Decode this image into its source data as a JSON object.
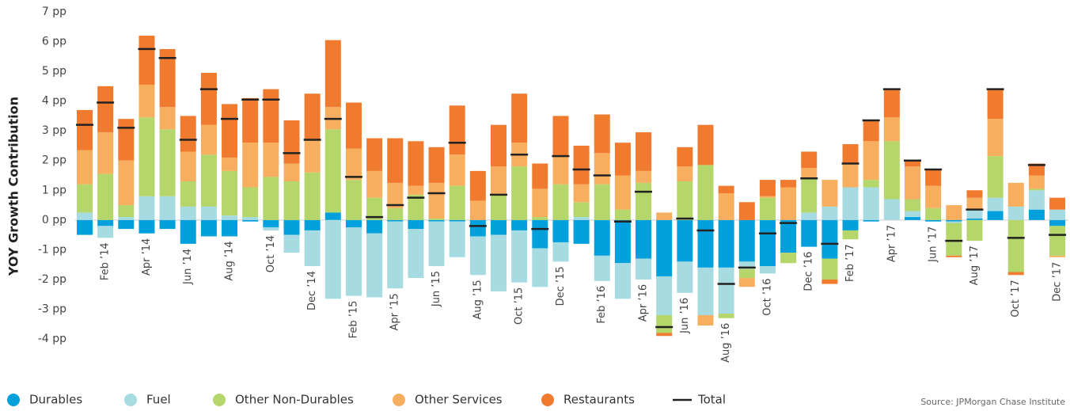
{
  "chart_data": {
    "type": "stacked-bar",
    "y_label": "YOY Growth Contribution",
    "source": "Source: JPMorgan Chase Institute",
    "categories": [
      null,
      "Feb ’14",
      null,
      "Apr ’14",
      null,
      "Jun ’14",
      null,
      "Aug ’14",
      null,
      "Oct ’14",
      null,
      "Dec ’14",
      null,
      "Feb ’15",
      null,
      "Apr ’15",
      null,
      "Jun ’15",
      null,
      "Aug ’15",
      null,
      "Oct ’15",
      null,
      "Dec ’15",
      null,
      "Feb ’16",
      null,
      "Apr ’16",
      null,
      "Jun ’16",
      null,
      "Aug ’16",
      null,
      "Oct ’16",
      null,
      "Dec ’16",
      null,
      "Feb ’17",
      null,
      "Apr ’17",
      null,
      "Jun ’17",
      null,
      "Aug ’17",
      null,
      "Oct ’17",
      null,
      "Dec ’17"
    ],
    "series": [
      {
        "name": "Durables",
        "color": "#00a0dc",
        "values": [
          -0.5,
          -0.2,
          -0.3,
          -0.45,
          -0.3,
          -0.8,
          -0.55,
          -0.55,
          -0.05,
          -0.25,
          -0.5,
          -0.35,
          0.25,
          -0.25,
          -0.45,
          -0.05,
          -0.3,
          -0.05,
          -0.05,
          -0.55,
          -0.5,
          -0.35,
          -0.95,
          -0.75,
          -0.8,
          -1.2,
          -1.45,
          -1.3,
          -1.9,
          -1.4,
          -1.6,
          -1.6,
          -1.4,
          -1.55,
          -1.1,
          -0.9,
          -1.3,
          -0.35,
          -0.05,
          0,
          0.1,
          -0.05,
          -0.05,
          0.05,
          0.3,
          0,
          0.35,
          -0.2
        ]
      },
      {
        "name": "Fuel",
        "color": "#a5dbe1",
        "values": [
          0.25,
          -0.4,
          0.1,
          0.8,
          0.8,
          0.45,
          0.45,
          0.15,
          0.1,
          -0.1,
          -0.6,
          -1.2,
          -2.65,
          -2.3,
          -2.15,
          -2.25,
          -1.65,
          -1.5,
          -1.2,
          -1.3,
          -1.9,
          -1.75,
          -1.3,
          -0.65,
          0.1,
          -0.85,
          -1.2,
          -0.7,
          -1.3,
          -1.05,
          -1.6,
          -1.55,
          -0.25,
          -0.25,
          0,
          0.25,
          0.45,
          1.1,
          1.1,
          0.7,
          0.2,
          0,
          -0.05,
          0.3,
          0.45,
          0.45,
          0.65,
          0.35
        ]
      },
      {
        "name": "Other Non-Durables",
        "color": "#b4d66a",
        "values": [
          0.95,
          1.55,
          0.4,
          2.65,
          2.25,
          0.85,
          1.75,
          1.5,
          1.0,
          1.45,
          1.3,
          1.6,
          2.8,
          1.35,
          0.75,
          0.4,
          0.85,
          0.05,
          1.15,
          0,
          0.85,
          1.8,
          0.1,
          1.2,
          0.5,
          1.2,
          0.35,
          1.25,
          -0.6,
          1.3,
          1.85,
          -0.15,
          -0.3,
          0.75,
          -0.35,
          1.15,
          -0.7,
          -0.3,
          0.25,
          1.95,
          0.4,
          0.4,
          -1.1,
          -0.7,
          1.4,
          -1.75,
          0.05,
          -1.0
        ]
      },
      {
        "name": "Other Services",
        "color": "#f8ae5f",
        "values": [
          1.15,
          1.4,
          1.5,
          1.1,
          0.75,
          1.0,
          1.0,
          0.45,
          1.5,
          1.15,
          0.6,
          1.1,
          0.75,
          1.05,
          0.9,
          0.85,
          0.3,
          1.2,
          1.05,
          0.65,
          0.95,
          0.8,
          0.95,
          0.95,
          0.6,
          1.05,
          1.15,
          0.4,
          0.25,
          0.5,
          -0.35,
          0.9,
          -0.3,
          0.05,
          1.1,
          0.35,
          0.9,
          0.8,
          1.3,
          0.8,
          1.1,
          0.75,
          0.5,
          0.4,
          1.25,
          0.8,
          0.45,
          -0.05
        ]
      },
      {
        "name": "Restaurants",
        "color": "#f07a2d",
        "values": [
          1.35,
          1.55,
          1.4,
          1.65,
          1.95,
          1.2,
          1.75,
          1.8,
          1.5,
          1.8,
          1.45,
          1.55,
          2.25,
          1.55,
          1.1,
          1.5,
          1.5,
          1.2,
          1.65,
          1.0,
          1.4,
          1.65,
          0.85,
          1.35,
          1.3,
          1.3,
          1.1,
          1.3,
          -0.1,
          0.65,
          1.35,
          0.25,
          0.6,
          0.55,
          0.25,
          0.55,
          -0.15,
          0.65,
          0.7,
          0.95,
          0.2,
          0.55,
          -0.05,
          0.25,
          1.0,
          -0.1,
          0.4,
          0.4
        ]
      }
    ],
    "total": {
      "name": "Total",
      "color": "#222222",
      "values": [
        3.2,
        3.95,
        3.1,
        5.75,
        5.45,
        2.7,
        4.4,
        3.4,
        4.05,
        4.05,
        2.25,
        2.7,
        3.4,
        1.45,
        0.1,
        0.5,
        0.75,
        0.9,
        2.6,
        -0.2,
        0.85,
        2.2,
        -0.3,
        2.15,
        1.7,
        1.5,
        -0.05,
        0.95,
        -3.6,
        0.05,
        -0.35,
        -2.15,
        -1.6,
        -0.45,
        -0.1,
        1.4,
        -0.8,
        1.9,
        3.35,
        4.4,
        2.0,
        1.7,
        -0.7,
        0.35,
        4.4,
        -0.6,
        1.85,
        -0.5
      ]
    },
    "ylim": [
      -4,
      7
    ],
    "yticks": [
      {
        "value": -4,
        "label": "-4 pp"
      },
      {
        "value": -3,
        "label": "-3 pp"
      },
      {
        "value": -2,
        "label": "-2 pp"
      },
      {
        "value": -1,
        "label": "-1 pp"
      },
      {
        "value": 0,
        "label": "0 pp"
      },
      {
        "value": 1,
        "label": "1 pp"
      },
      {
        "value": 2,
        "label": "2 pp"
      },
      {
        "value": 3,
        "label": "3 pp"
      },
      {
        "value": 4,
        "label": "4 pp"
      },
      {
        "value": 5,
        "label": "5 pp"
      },
      {
        "value": 6,
        "label": "6 pp"
      },
      {
        "value": 7,
        "label": "7 pp"
      }
    ],
    "grid": false
  }
}
